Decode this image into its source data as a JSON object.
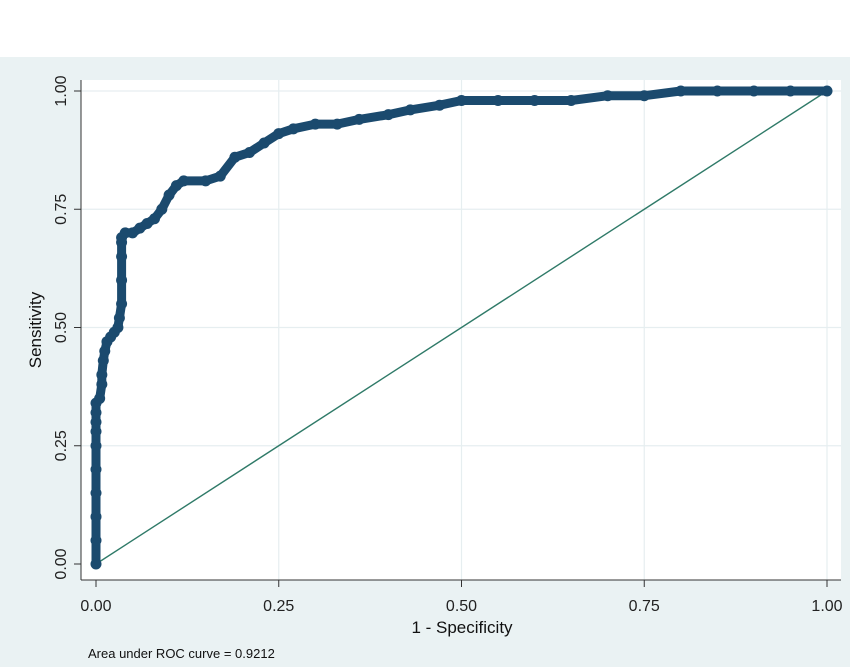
{
  "chart_data": {
    "type": "line",
    "title": "",
    "xlabel": "1 - Specificity",
    "ylabel": "Sensitivity",
    "xlim": [
      0,
      1
    ],
    "ylim": [
      0,
      1
    ],
    "xticks": [
      "0.00",
      "0.25",
      "0.50",
      "0.75",
      "1.00"
    ],
    "yticks": [
      "0.00",
      "0.25",
      "0.50",
      "0.75",
      "1.00"
    ],
    "grid": true,
    "note": "Area under ROC curve = 0.9212",
    "colors": {
      "curve": "#1b4a6e",
      "reference": "#2f7a68",
      "grid": "#ffffff",
      "background": "#eaf2f3"
    },
    "series": [
      {
        "x": [
          0.0,
          0.0,
          0.0,
          0.0,
          0.0,
          0.0,
          0.0,
          0.0,
          0.0,
          0.0,
          0.005,
          0.008,
          0.008,
          0.01,
          0.012,
          0.015,
          0.02,
          0.025,
          0.03,
          0.032,
          0.035,
          0.035,
          0.035,
          0.035,
          0.035,
          0.04,
          0.05,
          0.06,
          0.07,
          0.08,
          0.09,
          0.1,
          0.11,
          0.12,
          0.15,
          0.17,
          0.19,
          0.21,
          0.23,
          0.25,
          0.27,
          0.3,
          0.33,
          0.36,
          0.4,
          0.43,
          0.47,
          0.5,
          0.55,
          0.6,
          0.65,
          0.7,
          0.75,
          0.8,
          0.85,
          0.9,
          0.95,
          1.0
        ],
        "y": [
          0.0,
          0.05,
          0.1,
          0.15,
          0.2,
          0.25,
          0.28,
          0.3,
          0.32,
          0.34,
          0.35,
          0.38,
          0.4,
          0.43,
          0.45,
          0.47,
          0.48,
          0.49,
          0.5,
          0.52,
          0.55,
          0.6,
          0.65,
          0.68,
          0.69,
          0.7,
          0.7,
          0.71,
          0.72,
          0.73,
          0.75,
          0.78,
          0.8,
          0.81,
          0.81,
          0.82,
          0.86,
          0.87,
          0.89,
          0.91,
          0.92,
          0.93,
          0.93,
          0.94,
          0.95,
          0.96,
          0.97,
          0.98,
          0.98,
          0.98,
          0.98,
          0.99,
          0.99,
          1.0,
          1.0,
          1.0,
          1.0,
          1.0
        ]
      }
    ],
    "reference_line": {
      "x": [
        0,
        1
      ],
      "y": [
        0,
        1
      ]
    }
  }
}
